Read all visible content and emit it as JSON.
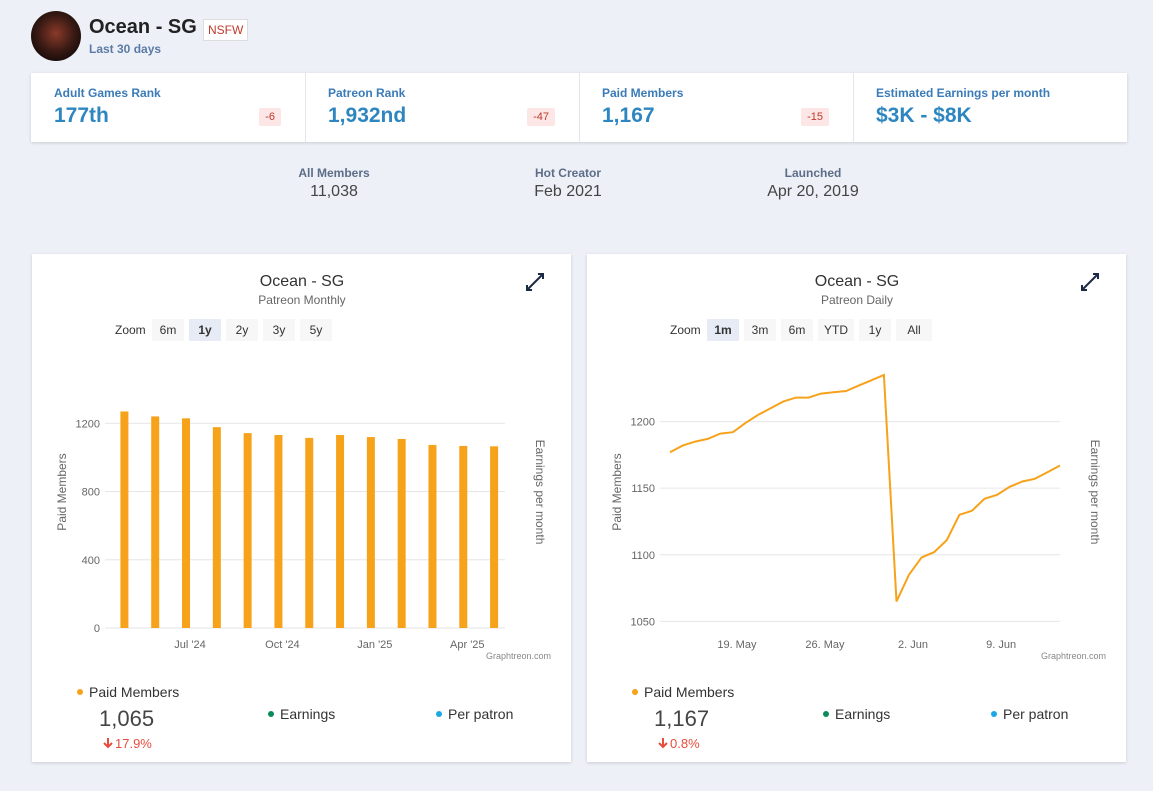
{
  "header": {
    "name": "Ocean - SG",
    "badge": "NSFW",
    "period": "Last 30 days"
  },
  "stats": [
    {
      "label": "Adult Games Rank",
      "value": "177th",
      "change": -6
    },
    {
      "label": "Patreon Rank",
      "value": "1,932nd",
      "change": -47
    },
    {
      "label": "Paid Members",
      "value": "1,167",
      "change": -15
    },
    {
      "label": "Estimated Earnings per month",
      "value": "$3K - $8K"
    }
  ],
  "info": [
    {
      "label": "All Members",
      "value": "11,038"
    },
    {
      "label": "Hot Creator",
      "value": "Feb 2021"
    },
    {
      "label": "Launched",
      "value": "Apr 20, 2019"
    }
  ],
  "chart_data": [
    {
      "type": "bar",
      "title": "Ocean - SG",
      "subtitle": "Patreon Monthly",
      "zoom_label": "Zoom",
      "zoom_options": [
        "6m",
        "1y",
        "2y",
        "3y",
        "5y"
      ],
      "zoom_active": 1,
      "y_label": "Paid Members",
      "y2_label": "Earnings per month",
      "credit": "Graphtreon.com",
      "categories": [
        null,
        null,
        "Jul '24",
        null,
        null,
        "Oct '24",
        null,
        null,
        "Jan '25",
        null,
        null,
        "Apr '25",
        null
      ],
      "series": [
        {
          "name": "Paid Members",
          "color": "#f7a21b",
          "values": [
            1269,
            1240,
            1229,
            1177,
            1142,
            1131,
            1114,
            1131,
            1119,
            1108,
            1073,
            1067,
            1065
          ]
        }
      ],
      "ylim": [
        0,
        1600
      ],
      "yticks": [
        0,
        400,
        800,
        1200
      ],
      "grid": true,
      "legend_extra": [
        {
          "name": "Earnings",
          "color": "#0d8a5a"
        },
        {
          "name": "Per patron",
          "color": "#1ba8e8"
        }
      ],
      "summary_value": "1,065",
      "summary_change": "17.9%"
    },
    {
      "type": "line",
      "title": "Ocean - SG",
      "subtitle": "Patreon Daily",
      "zoom_label": "Zoom",
      "zoom_options": [
        "1m",
        "3m",
        "6m",
        "YTD",
        "1y",
        "All"
      ],
      "zoom_active": 0,
      "y_label": "Paid Members",
      "y2_label": "Earnings per month",
      "credit": "Graphtreon.com",
      "categories": [
        null,
        null,
        null,
        null,
        null,
        "19. May",
        null,
        null,
        null,
        null,
        null,
        null,
        "26. May",
        null,
        null,
        null,
        null,
        null,
        null,
        "2. Jun",
        null,
        null,
        null,
        null,
        null,
        null,
        "9. Jun",
        null,
        null,
        null,
        null,
        null
      ],
      "series": [
        {
          "name": "Paid Members",
          "color": "#f7a21b",
          "values": [
            1177,
            1182,
            1185,
            1187,
            1191,
            1192,
            1199,
            1205,
            1210,
            1215,
            1218,
            1218,
            1221,
            1222,
            1223,
            1227,
            1231,
            1235,
            1065,
            1085,
            1098,
            1102,
            1111,
            1130,
            1133,
            1142,
            1145,
            1151,
            1155,
            1157,
            1162,
            1167
          ]
        }
      ],
      "ylim": [
        1045,
        1250
      ],
      "yticks": [
        1050,
        1100,
        1150,
        1200
      ],
      "grid": true,
      "legend_extra": [
        {
          "name": "Earnings",
          "color": "#0d8a5a"
        },
        {
          "name": "Per patron",
          "color": "#1ba8e8"
        }
      ],
      "summary_value": "1,167",
      "summary_change": "0.8%"
    }
  ]
}
